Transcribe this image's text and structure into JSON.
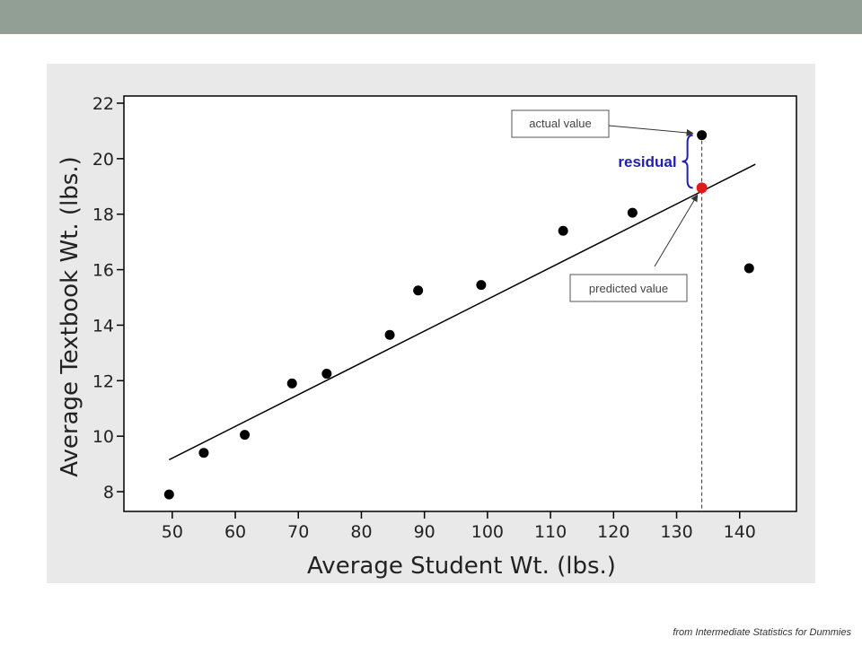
{
  "header": {
    "bar_color": "#929f94"
  },
  "source_note": "from Intermediate Statistics for Dummies",
  "chart_data": {
    "type": "scatter",
    "title": "",
    "xlabel": "Average Student Wt. (lbs.)",
    "ylabel": "Average Textbook Wt. (lbs.)",
    "xlim": [
      45,
      148
    ],
    "ylim": [
      7.3,
      22.3
    ],
    "xticks": [
      50,
      60,
      70,
      80,
      90,
      100,
      110,
      120,
      130,
      140
    ],
    "yticks": [
      8,
      10,
      12,
      14,
      16,
      18,
      20,
      22
    ],
    "grid": false,
    "points": [
      {
        "x": 49.5,
        "y": 7.9
      },
      {
        "x": 55,
        "y": 9.4
      },
      {
        "x": 61.5,
        "y": 10.05
      },
      {
        "x": 69,
        "y": 11.9
      },
      {
        "x": 74.5,
        "y": 12.25
      },
      {
        "x": 84.5,
        "y": 13.65
      },
      {
        "x": 89,
        "y": 15.25
      },
      {
        "x": 99,
        "y": 15.45
      },
      {
        "x": 112,
        "y": 17.4
      },
      {
        "x": 123,
        "y": 18.05
      },
      {
        "x": 134,
        "y": 20.85
      },
      {
        "x": 141.5,
        "y": 16.05
      }
    ],
    "fit_line": {
      "x": [
        49.5,
        142.5
      ],
      "y": [
        9.15,
        19.8
      ]
    },
    "predicted_point": {
      "x": 134,
      "y": 18.95,
      "color": "#e21a1a"
    },
    "annotations": {
      "actual_label": "actual value",
      "predicted_label": "predicted value",
      "residual_label": "residual",
      "residual_color": "#1f1fb4"
    }
  }
}
